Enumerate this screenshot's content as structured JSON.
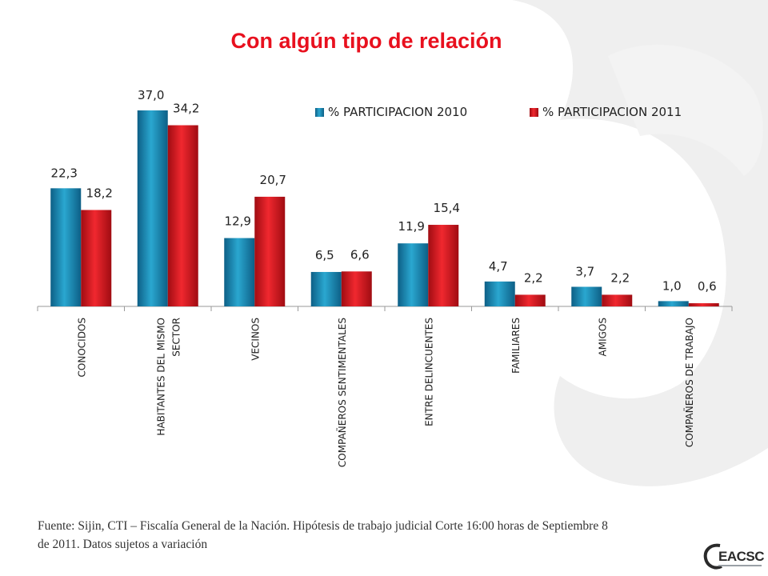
{
  "slide": {
    "title": "Con algún tipo de relación",
    "footnote_line1": "Fuente: Sijin,  CTI – Fiscalía General de la Nación.  Hipótesis de trabajo judicial  Corte 16:00 horas de  Septiembre 8",
    "footnote_line2": "de  2011.  Datos sujetos a variación",
    "logo_text": "EACSC"
  },
  "colors": {
    "series_2010": "#1e8fb5",
    "series_2011": "#e31b23",
    "title": "#e8101e",
    "deco": "#ececec"
  },
  "chart_data": {
    "type": "bar",
    "title": "Con algún tipo de relación",
    "categories": [
      "CONOCIDOS",
      "HABITANTES DEL MISMO SECTOR",
      "VECINOS",
      "COMPAÑEROS SENTIMENTALES",
      "ENTRE DELINCUENTES",
      "FAMILIARES",
      "AMIGOS",
      "COMPAÑEROS DE TRABAJO"
    ],
    "category_label_lines": [
      [
        "CONOCIDOS"
      ],
      [
        "HABITANTES DEL MISMO",
        "SECTOR"
      ],
      [
        "VECINOS"
      ],
      [
        "COMPAÑEROS SENTIMENTALES"
      ],
      [
        "ENTRE DELINCUENTES"
      ],
      [
        "FAMILIARES"
      ],
      [
        "AMIGOS"
      ],
      [
        "COMPAÑEROS DE TRABAJO"
      ]
    ],
    "series": [
      {
        "name": "% PARTICIPACION 2010",
        "values": [
          22.3,
          37.0,
          12.9,
          6.5,
          11.9,
          4.7,
          3.7,
          1.0
        ],
        "labels": [
          "22,3",
          "37,0",
          "12,9",
          "6,5",
          "11,9",
          "4,7",
          "3,7",
          "1,0"
        ]
      },
      {
        "name": "% PARTICIPACION 2011",
        "values": [
          18.2,
          34.2,
          20.7,
          6.6,
          15.4,
          2.2,
          2.2,
          0.6
        ],
        "labels": [
          "18,2",
          "34,2",
          "20,7",
          "6,6",
          "15,4",
          "2,2",
          "2,2",
          "0,6"
        ]
      }
    ],
    "ylim": [
      0,
      37
    ],
    "xlabel": "",
    "ylabel": "",
    "grid": false,
    "legend_position": "top-right"
  }
}
